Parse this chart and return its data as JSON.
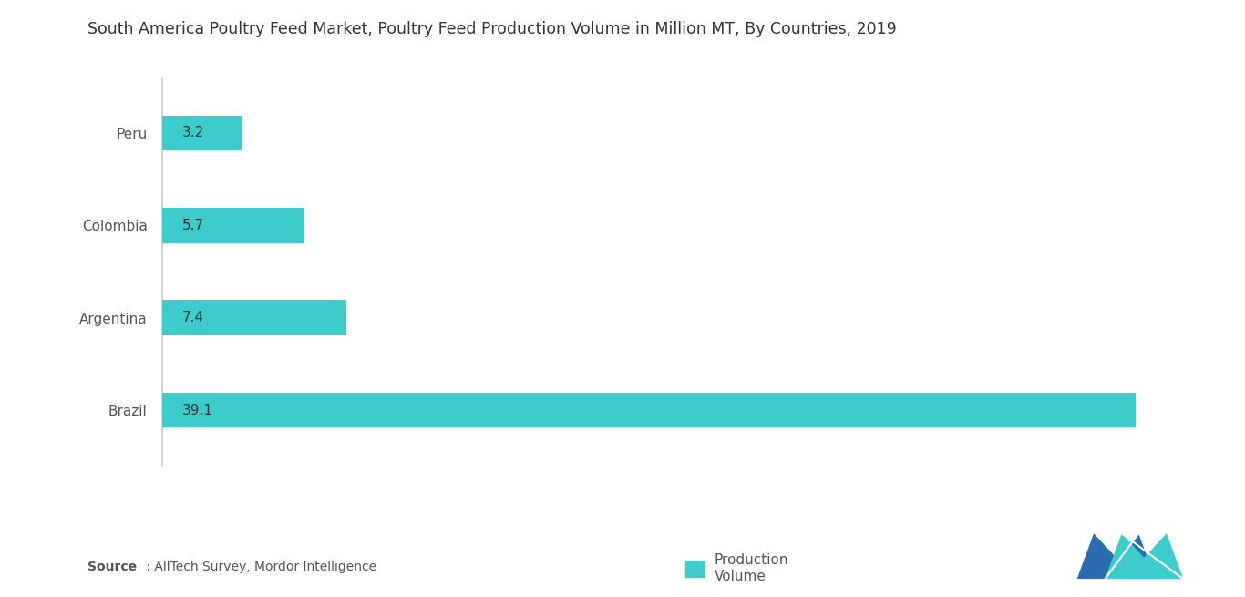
{
  "title": "South America Poultry Feed Market, Poultry Feed Production Volume in Million MT, By Countries, 2019",
  "categories": [
    "Brazil",
    "Argentina",
    "Colombia",
    "Peru"
  ],
  "values": [
    39.1,
    7.4,
    5.7,
    3.2
  ],
  "bar_color": "#3DCCCC",
  "bar_label_color": "#333333",
  "background_color": "#ffffff",
  "legend_label": "Production\nVolume",
  "source_bold": "Source",
  "source_rest": " : AllTech Survey, Mordor Intelligence",
  "title_fontsize": 12.5,
  "label_fontsize": 11,
  "value_fontsize": 11,
  "xlim": [
    0,
    42
  ],
  "bar_height": 0.38,
  "spine_color": "#cccccc",
  "logo_color_blue": "#2B6CB0",
  "logo_color_teal": "#3DCCCC",
  "text_color": "#555555"
}
